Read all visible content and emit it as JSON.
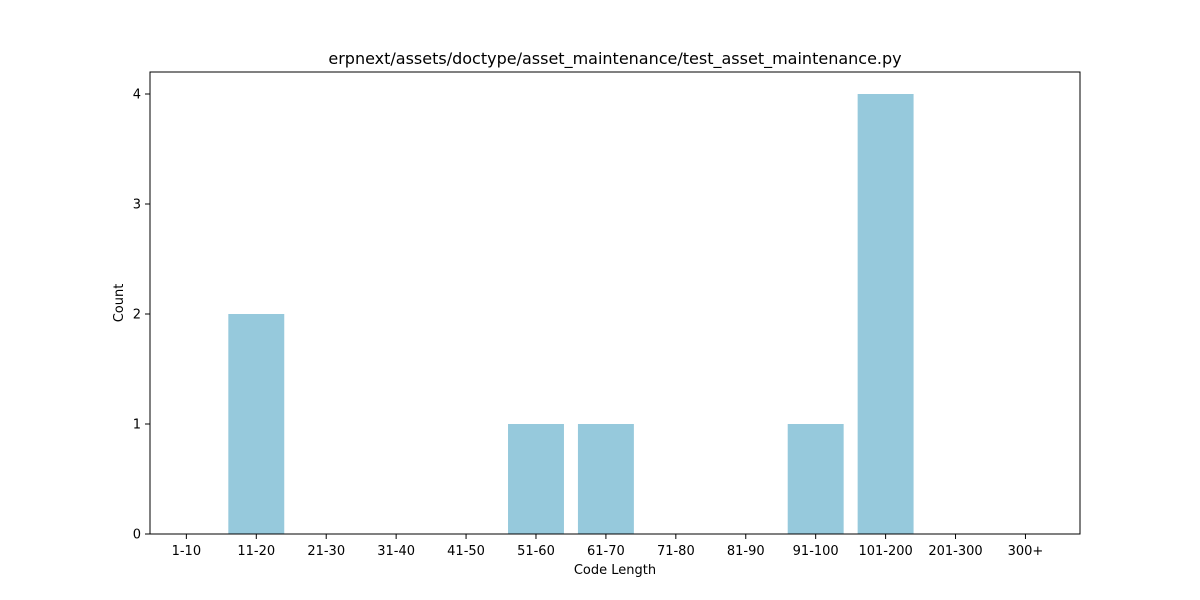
{
  "chart_data": {
    "type": "bar",
    "title": "erpnext/assets/doctype/asset_maintenance/test_asset_maintenance.py",
    "xlabel": "Code Length",
    "ylabel": "Count",
    "categories": [
      "1-10",
      "11-20",
      "21-30",
      "31-40",
      "41-50",
      "51-60",
      "61-70",
      "71-80",
      "81-90",
      "91-100",
      "101-200",
      "201-300",
      "300+"
    ],
    "values": [
      0,
      2,
      0,
      0,
      0,
      1,
      1,
      0,
      0,
      1,
      4,
      0,
      0
    ],
    "yticks": [
      0,
      1,
      2,
      3,
      4
    ],
    "ylim": [
      0,
      4.2
    ],
    "bar_color": "#96c9dc",
    "grid": false,
    "legend": "none"
  }
}
